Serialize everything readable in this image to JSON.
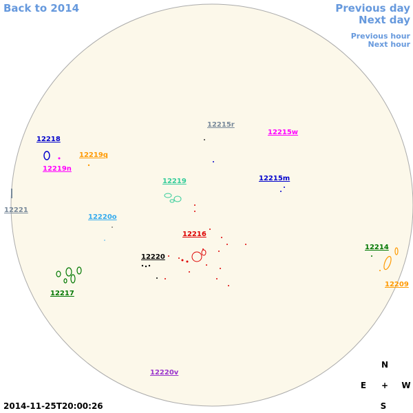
{
  "nav": {
    "back": "Back to 2014",
    "previous_day": "Previous day",
    "next_day": "Next day",
    "previous_hour": "Previous hour",
    "next_hour": "Next hour"
  },
  "regions": [
    {
      "label": "12218",
      "color": "#0000cc"
    },
    {
      "label": "12219q",
      "color": "#ff9900"
    },
    {
      "label": "12219n",
      "color": "#ff00ff"
    },
    {
      "label": "12215r",
      "color": "#778899"
    },
    {
      "label": "12215w",
      "color": "#ff00ff"
    },
    {
      "label": "12219",
      "color": "#33cc99"
    },
    {
      "label": "12215m",
      "color": "#0000cc"
    },
    {
      "label": "12221",
      "color": "#778899"
    },
    {
      "label": "12220o",
      "color": "#33aaee"
    },
    {
      "label": "12216",
      "color": "#dd0000"
    },
    {
      "label": "12214",
      "color": "#007700"
    },
    {
      "label": "12220",
      "color": "#000000"
    },
    {
      "label": "12209",
      "color": "#ff9900"
    },
    {
      "label": "12217",
      "color": "#007700"
    },
    {
      "label": "12220v",
      "color": "#9933cc"
    }
  ],
  "timestamp": "2014-11-25T20:00:26",
  "compass": {
    "north": "N",
    "east": "E",
    "center": "+",
    "west": "W",
    "south": "S"
  }
}
